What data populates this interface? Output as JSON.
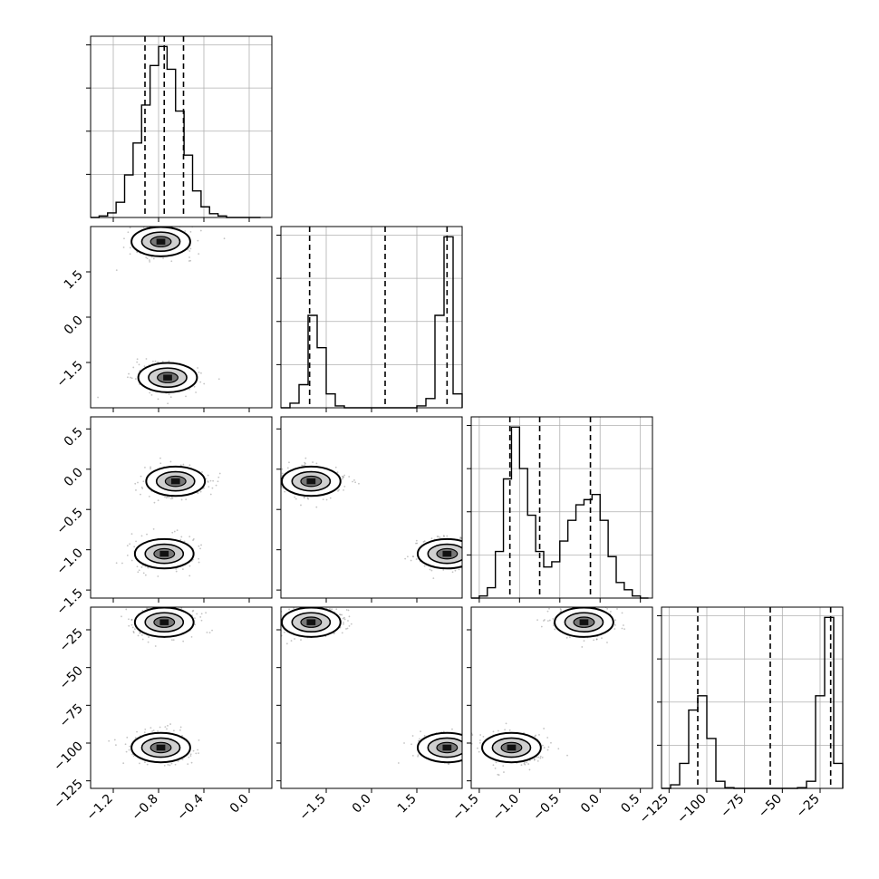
{
  "chart_data": [
    {
      "type": "histogram",
      "panel": "1,1",
      "xlim": [
        -1.4,
        0.2
      ],
      "bins": [
        -1.4,
        -1.325,
        -1.25,
        -1.175,
        -1.1,
        -1.025,
        -0.95,
        -0.875,
        -0.8,
        -0.725,
        -0.65,
        -0.575,
        -0.5,
        -0.425,
        -0.35,
        -0.275,
        -0.2,
        -0.125,
        -0.05,
        0.025,
        0.1
      ],
      "counts": [
        0,
        2,
        6,
        20,
        56,
        98,
        148,
        200,
        225,
        195,
        140,
        82,
        35,
        14,
        5,
        2,
        0,
        0,
        0,
        0
      ],
      "quantiles": [
        -0.92,
        -0.75,
        -0.58
      ],
      "xticks": [
        -1.2,
        -0.8,
        -0.4,
        0.0
      ],
      "xticklabels": [
        "−1.2",
        "−0.8",
        "−0.4",
        "0.0"
      ],
      "grid": true
    },
    {
      "type": "scatter-contour",
      "panel": "2,1",
      "xlim": [
        -1.4,
        0.2
      ],
      "ylim": [
        -3.0,
        3.0
      ],
      "modes": [
        {
          "x": -0.78,
          "y": 2.5
        },
        {
          "x": -0.72,
          "y": -2.0
        }
      ],
      "xticks": [
        -1.2,
        -0.8,
        -0.4,
        0.0
      ],
      "xticklabels": [
        "−1.2",
        "−0.8",
        "−0.4",
        "0.0"
      ],
      "yticks": [
        -1.5,
        0.0,
        1.5
      ],
      "yticklabels": [
        "−1.5",
        "0.0",
        "1.5"
      ]
    },
    {
      "type": "histogram",
      "panel": "2,2",
      "xlim": [
        -3.0,
        3.0
      ],
      "bins": [
        -3.0,
        -2.7,
        -2.4,
        -2.1,
        -1.8,
        -1.5,
        -1.2,
        -0.9,
        -0.6,
        -0.3,
        0.0,
        0.3,
        0.6,
        0.9,
        1.2,
        1.5,
        1.8,
        2.1,
        2.4,
        2.7,
        3.0
      ],
      "counts": [
        0,
        5,
        25,
        100,
        65,
        15,
        2,
        0,
        0,
        0,
        0,
        0,
        0,
        0,
        0,
        2,
        10,
        100,
        185,
        15
      ],
      "quantiles": [
        -2.05,
        0.45,
        2.5
      ],
      "xticks": [
        -1.5,
        0.0,
        1.5
      ],
      "xticklabels": [
        "−1.5",
        "0.0",
        "1.5"
      ],
      "grid": true
    },
    {
      "type": "scatter-contour",
      "panel": "3,1",
      "xlim": [
        -1.4,
        0.2
      ],
      "ylim": [
        -1.6,
        0.65
      ],
      "modes": [
        {
          "x": -0.65,
          "y": -0.15
        },
        {
          "x": -0.75,
          "y": -1.05
        }
      ],
      "xticks": [
        -1.2,
        -0.8,
        -0.4,
        0.0
      ],
      "xticklabels": [
        "−1.2",
        "−0.8",
        "−0.4",
        "0.0"
      ],
      "yticks": [
        -1.5,
        -1.0,
        -0.5,
        0.0,
        0.5
      ],
      "yticklabels": [
        "−1.5",
        "−1.0",
        "−0.5",
        "0.0",
        "0.5"
      ]
    },
    {
      "type": "scatter-contour",
      "panel": "3,2",
      "xlim": [
        -3.0,
        3.0
      ],
      "ylim": [
        -1.6,
        0.65
      ],
      "modes": [
        {
          "x": -2.0,
          "y": -0.15
        },
        {
          "x": 2.5,
          "y": -1.05
        }
      ],
      "xticks": [
        -1.5,
        0.0,
        1.5
      ],
      "xticklabels": [
        "−1.5",
        "0.0",
        "1.5"
      ],
      "yticks": [
        -1.5,
        -1.0,
        -0.5,
        0.0,
        0.5
      ],
      "yticklabels": [
        "−1.5",
        "−1.0",
        "−0.5",
        "0.0",
        "0.5"
      ]
    },
    {
      "type": "histogram",
      "panel": "3,3",
      "xlim": [
        -1.6,
        0.65
      ],
      "bins": [
        -1.6,
        -1.5,
        -1.4,
        -1.3,
        -1.2,
        -1.1,
        -1.0,
        -0.9,
        -0.8,
        -0.7,
        -0.6,
        -0.5,
        -0.4,
        -0.3,
        -0.2,
        -0.1,
        0.0,
        0.1,
        0.2,
        0.3,
        0.4,
        0.5,
        0.6
      ],
      "counts": [
        0,
        2,
        10,
        45,
        115,
        165,
        125,
        80,
        45,
        30,
        35,
        55,
        75,
        90,
        95,
        100,
        75,
        40,
        15,
        8,
        2,
        0
      ],
      "quantiles": [
        -1.12,
        -0.75,
        -0.12
      ],
      "xticks": [
        -1.5,
        -1.0,
        -0.5,
        0.0,
        0.5
      ],
      "xticklabels": [
        "−1.5",
        "−1.0",
        "−0.5",
        "0.0",
        "0.5"
      ],
      "grid": true
    },
    {
      "type": "scatter-contour",
      "panel": "4,1",
      "xlim": [
        -1.4,
        0.2
      ],
      "ylim": [
        -130,
        -10
      ],
      "modes": [
        {
          "x": -0.75,
          "y": -20
        },
        {
          "x": -0.78,
          "y": -103
        }
      ],
      "xticks": [
        -1.2,
        -0.8,
        -0.4,
        0.0
      ],
      "xticklabels": [
        "−1.2",
        "−0.8",
        "−0.4",
        "0.0"
      ],
      "yticks": [
        -125,
        -100,
        -75,
        -50,
        -25
      ],
      "yticklabels": [
        "−125",
        "−100",
        "−75",
        "−50",
        "−25"
      ]
    },
    {
      "type": "scatter-contour",
      "panel": "4,2",
      "xlim": [
        -3.0,
        3.0
      ],
      "ylim": [
        -130,
        -10
      ],
      "modes": [
        {
          "x": -2.0,
          "y": -20
        },
        {
          "x": 2.5,
          "y": -103
        }
      ],
      "xticks": [
        -1.5,
        0.0,
        1.5
      ],
      "xticklabels": [
        "−1.5",
        "0.0",
        "1.5"
      ],
      "yticks": [
        -125,
        -100,
        -75,
        -50,
        -25
      ],
      "yticklabels": [
        "−125",
        "−100",
        "−75",
        "−50",
        "−25"
      ]
    },
    {
      "type": "scatter-contour",
      "panel": "4,3",
      "xlim": [
        -1.6,
        0.65
      ],
      "ylim": [
        -130,
        -10
      ],
      "modes": [
        {
          "x": -0.2,
          "y": -20
        },
        {
          "x": -1.1,
          "y": -103
        }
      ],
      "xticks": [
        -1.5,
        -1.0,
        -0.5,
        0.0,
        0.5
      ],
      "xticklabels": [
        "−1.5",
        "−1.0",
        "−0.5",
        "0.0",
        "0.5"
      ],
      "yticks": [
        -125,
        -100,
        -75,
        -50,
        -25
      ],
      "yticklabels": [
        "−125",
        "−100",
        "−75",
        "−50",
        "−25"
      ]
    },
    {
      "type": "histogram",
      "panel": "4,4",
      "xlim": [
        -130,
        -10
      ],
      "bins": [
        -130,
        -124,
        -118,
        -112,
        -106,
        -100,
        -94,
        -88,
        -82,
        -76,
        -70,
        -64,
        -58,
        -52,
        -46,
        -40,
        -34,
        -28,
        -22,
        -16,
        -10
      ],
      "counts": [
        0,
        5,
        35,
        110,
        130,
        70,
        10,
        1,
        0,
        0,
        0,
        0,
        0,
        0,
        0,
        1,
        10,
        130,
        240,
        35
      ],
      "quantiles": [
        -106,
        -58,
        -18
      ],
      "xticks": [
        -125,
        -100,
        -75,
        -50,
        -25
      ],
      "xticklabels": [
        "−125",
        "−100",
        "−75",
        "−50",
        "−25"
      ],
      "grid": true
    }
  ]
}
